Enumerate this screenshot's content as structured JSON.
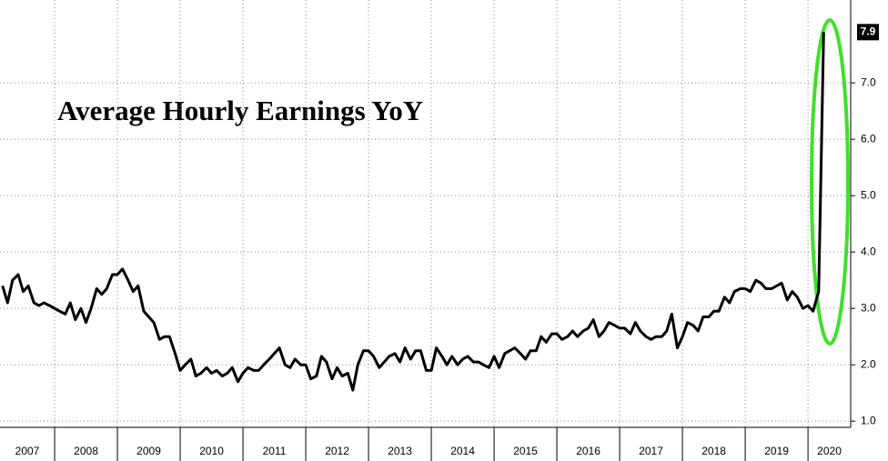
{
  "chart_data": {
    "type": "line",
    "title": "Average Hourly Earnings YoY",
    "color": "#000000",
    "grid": true,
    "x": [
      2007.17,
      2007.25,
      2007.33,
      2007.42,
      2007.5,
      2007.58,
      2007.67,
      2007.75,
      2007.83,
      2007.92,
      2008.0,
      2008.08,
      2008.17,
      2008.25,
      2008.33,
      2008.42,
      2008.5,
      2008.58,
      2008.67,
      2008.75,
      2008.83,
      2008.92,
      2009.0,
      2009.08,
      2009.17,
      2009.25,
      2009.33,
      2009.42,
      2009.5,
      2009.58,
      2009.67,
      2009.75,
      2009.83,
      2009.92,
      2010.0,
      2010.08,
      2010.17,
      2010.25,
      2010.33,
      2010.42,
      2010.5,
      2010.58,
      2010.67,
      2010.75,
      2010.83,
      2010.92,
      2011.0,
      2011.08,
      2011.17,
      2011.25,
      2011.33,
      2011.42,
      2011.5,
      2011.58,
      2011.67,
      2011.75,
      2011.83,
      2011.92,
      2012.0,
      2012.08,
      2012.17,
      2012.25,
      2012.33,
      2012.42,
      2012.5,
      2012.58,
      2012.67,
      2012.75,
      2012.83,
      2012.92,
      2013.0,
      2013.08,
      2013.17,
      2013.25,
      2013.33,
      2013.42,
      2013.5,
      2013.58,
      2013.67,
      2013.75,
      2013.83,
      2013.92,
      2014.0,
      2014.08,
      2014.17,
      2014.25,
      2014.33,
      2014.42,
      2014.5,
      2014.58,
      2014.67,
      2014.75,
      2014.83,
      2014.92,
      2015.0,
      2015.08,
      2015.17,
      2015.25,
      2015.33,
      2015.42,
      2015.5,
      2015.58,
      2015.67,
      2015.75,
      2015.83,
      2015.92,
      2016.0,
      2016.08,
      2016.17,
      2016.25,
      2016.33,
      2016.42,
      2016.5,
      2016.58,
      2016.67,
      2016.75,
      2016.83,
      2016.92,
      2017.0,
      2017.08,
      2017.17,
      2017.25,
      2017.33,
      2017.42,
      2017.5,
      2017.58,
      2017.67,
      2017.75,
      2017.83,
      2017.92,
      2018.0,
      2018.08,
      2018.17,
      2018.25,
      2018.33,
      2018.42,
      2018.5,
      2018.58,
      2018.67,
      2018.75,
      2018.83,
      2018.92,
      2019.0,
      2019.08,
      2019.17,
      2019.25,
      2019.33,
      2019.42,
      2019.5,
      2019.58,
      2019.67,
      2019.75,
      2019.83,
      2019.92,
      2020.0,
      2020.08,
      2020.17,
      2020.25
    ],
    "values": [
      3.4,
      3.1,
      3.5,
      3.6,
      3.3,
      3.4,
      3.1,
      3.05,
      3.1,
      3.05,
      3.0,
      2.95,
      2.9,
      3.1,
      2.8,
      3.0,
      2.75,
      3.0,
      3.35,
      3.25,
      3.35,
      3.6,
      3.6,
      3.7,
      3.5,
      3.3,
      3.4,
      2.95,
      2.85,
      2.75,
      2.45,
      2.5,
      2.5,
      2.2,
      1.9,
      2.0,
      2.1,
      1.8,
      1.85,
      1.95,
      1.85,
      1.9,
      1.8,
      1.85,
      1.95,
      1.7,
      1.85,
      1.95,
      1.9,
      1.9,
      2.0,
      2.1,
      2.2,
      2.3,
      2.0,
      1.95,
      2.1,
      2.0,
      2.0,
      1.75,
      1.8,
      2.15,
      2.05,
      1.75,
      1.95,
      1.8,
      1.85,
      1.55,
      2.0,
      2.25,
      2.25,
      2.15,
      1.95,
      2.05,
      2.15,
      2.2,
      2.05,
      2.3,
      2.1,
      2.25,
      2.25,
      1.9,
      1.9,
      2.3,
      2.15,
      2.0,
      2.15,
      2.0,
      2.1,
      2.15,
      2.05,
      2.05,
      2.0,
      1.95,
      2.15,
      1.95,
      2.2,
      2.25,
      2.3,
      2.2,
      2.1,
      2.25,
      2.25,
      2.5,
      2.4,
      2.55,
      2.55,
      2.45,
      2.5,
      2.6,
      2.5,
      2.6,
      2.65,
      2.8,
      2.5,
      2.6,
      2.75,
      2.7,
      2.65,
      2.65,
      2.55,
      2.75,
      2.6,
      2.5,
      2.45,
      2.5,
      2.5,
      2.6,
      2.9,
      2.3,
      2.5,
      2.75,
      2.7,
      2.6,
      2.85,
      2.85,
      2.95,
      2.95,
      3.2,
      3.1,
      3.3,
      3.35,
      3.35,
      3.3,
      3.5,
      3.45,
      3.35,
      3.35,
      3.4,
      3.45,
      3.15,
      3.3,
      3.2,
      3.0,
      3.05,
      2.95,
      3.3,
      7.9
    ],
    "xlim": [
      2007.13,
      2020.68
    ],
    "xticks": [
      2007,
      2008,
      2009,
      2010,
      2011,
      2012,
      2013,
      2014,
      2015,
      2016,
      2017,
      2018,
      2019,
      2020
    ],
    "ylim": [
      0.89,
      8.47
    ],
    "yticks": [
      {
        "value": 1,
        "label": "1.0"
      },
      {
        "value": 2,
        "label": "2.0"
      },
      {
        "value": 3,
        "label": "3.0"
      },
      {
        "value": 4,
        "label": "4.0"
      },
      {
        "value": 5,
        "label": "5.0"
      },
      {
        "value": 6,
        "label": "6.0"
      },
      {
        "value": 7,
        "label": "7.0"
      }
    ]
  }
}
